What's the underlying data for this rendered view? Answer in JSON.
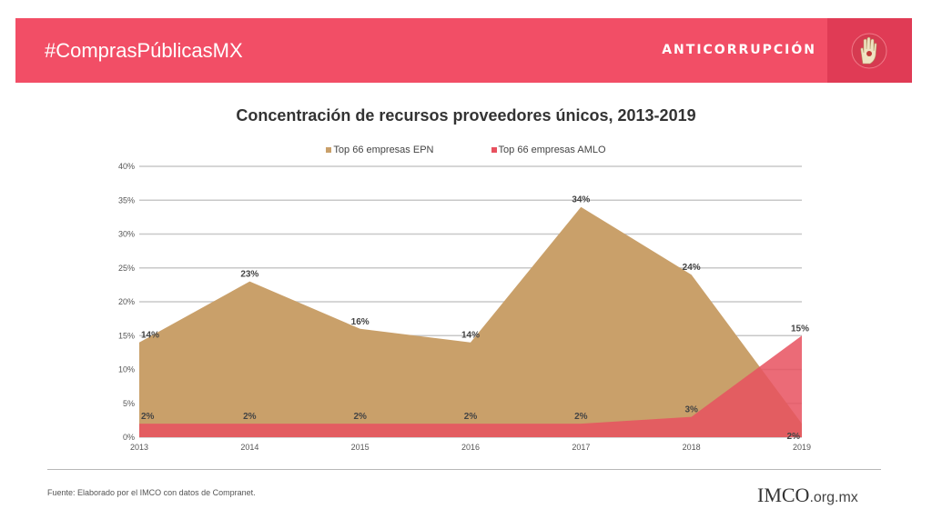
{
  "header": {
    "hashtag": "#ComprasPúblicasMX",
    "section": "ANTICORRUPCIÓN",
    "badge_icon": "raised-hand-icon",
    "colors": {
      "bar": "#f24e66",
      "badge_bg": "#e03b55"
    }
  },
  "chart_data": {
    "type": "area",
    "title": "Concentración de recursos proveedores únicos, 2013-2019",
    "xlabel": "",
    "ylabel": "",
    "categories": [
      "2013",
      "2014",
      "2015",
      "2016",
      "2017",
      "2018",
      "2019"
    ],
    "series": [
      {
        "name": "Top 66 empresas EPN",
        "color": "#c9a06a",
        "values": [
          14,
          23,
          16,
          14,
          34,
          24,
          2
        ],
        "labels": [
          "14%",
          "23%",
          "16%",
          "14%",
          "34%",
          "24%",
          "2%"
        ]
      },
      {
        "name": "Top 66 empresas AMLO",
        "color": "#e8515f",
        "values": [
          2,
          2,
          2,
          2,
          2,
          3,
          15
        ],
        "labels": [
          "2%",
          "2%",
          "2%",
          "2%",
          "2%",
          "3%",
          "15%"
        ]
      }
    ],
    "ylim": [
      0,
      40
    ],
    "yticks": [
      "0%",
      "5%",
      "10%",
      "15%",
      "20%",
      "25%",
      "30%",
      "35%",
      "40%"
    ],
    "grid": true,
    "legend": "top-center"
  },
  "footer": {
    "source": "Fuente: Elaborado por el IMCO con datos de Compranet.",
    "logo_text": "IMCO",
    "logo_domain": ".org.mx"
  }
}
